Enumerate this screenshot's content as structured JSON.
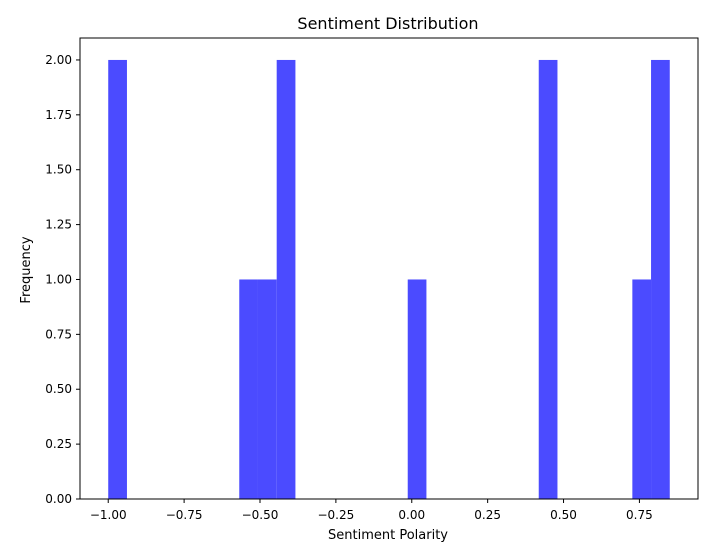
{
  "chart_data": {
    "type": "bar",
    "title": "Sentiment Distribution",
    "xlabel": "Sentiment Polarity",
    "ylabel": "Frequency",
    "xlim": [
      -1.093,
      0.943
    ],
    "ylim": [
      0,
      2.1
    ],
    "grid": false,
    "bar_color": "#4b4bff",
    "x_ticks": [
      {
        "value": -1.0,
        "label": "−1.00"
      },
      {
        "value": -0.75,
        "label": "−0.75"
      },
      {
        "value": -0.5,
        "label": "−0.50"
      },
      {
        "value": -0.25,
        "label": "−0.25"
      },
      {
        "value": 0.0,
        "label": "0.00"
      },
      {
        "value": 0.25,
        "label": "0.25"
      },
      {
        "value": 0.5,
        "label": "0.50"
      },
      {
        "value": 0.75,
        "label": "0.75"
      }
    ],
    "y_ticks": [
      {
        "value": 0.0,
        "label": "0.00"
      },
      {
        "value": 0.25,
        "label": "0.25"
      },
      {
        "value": 0.5,
        "label": "0.50"
      },
      {
        "value": 0.75,
        "label": "0.75"
      },
      {
        "value": 1.0,
        "label": "1.00"
      },
      {
        "value": 1.25,
        "label": "1.25"
      },
      {
        "value": 1.5,
        "label": "1.50"
      },
      {
        "value": 1.75,
        "label": "1.75"
      },
      {
        "value": 2.0,
        "label": "2.00"
      }
    ],
    "bins": [
      {
        "x0": -1.0,
        "x1": -0.9383,
        "count": 2
      },
      {
        "x0": -0.5683,
        "x1": -0.5067,
        "count": 1
      },
      {
        "x0": -0.5067,
        "x1": -0.445,
        "count": 1
      },
      {
        "x0": -0.445,
        "x1": -0.3833,
        "count": 2
      },
      {
        "x0": -0.0133,
        "x1": 0.0483,
        "count": 1
      },
      {
        "x0": 0.4183,
        "x1": 0.48,
        "count": 2
      },
      {
        "x0": 0.7267,
        "x1": 0.7883,
        "count": 1
      },
      {
        "x0": 0.7883,
        "x1": 0.85,
        "count": 2
      }
    ]
  }
}
